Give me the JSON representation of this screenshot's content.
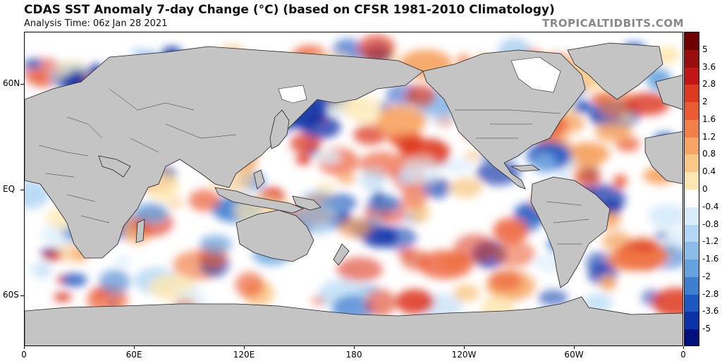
{
  "header": {
    "title": "CDAS SST Anomaly 7-day Change (°C) (based on CFSR 1981-2010 Climatology)",
    "subtitle": "Analysis Time: 06z Jan 28 2021",
    "brand": "TROPICALTIDBITS.COM"
  },
  "map": {
    "latitude_labels": [
      "60N",
      "EQ",
      "60S"
    ],
    "longitude_labels": [
      "0",
      "60E",
      "120E",
      "180",
      "120W",
      "60W",
      "0"
    ],
    "land_color": "#c4c4c4",
    "ocean_neutral_color": "#ffffff"
  },
  "colorbar": {
    "labels": [
      "5",
      "3.6",
      "2.8",
      "2",
      "1.6",
      "1.2",
      "0.8",
      "0.4",
      "0",
      "-0.4",
      "-0.8",
      "-1.2",
      "-1.6",
      "-2",
      "-2.8",
      "-3.6",
      "-5"
    ],
    "colors": [
      "#6e0000",
      "#9a0d0d",
      "#c21616",
      "#dd3a22",
      "#ec5c34",
      "#f2804a",
      "#f6a564",
      "#f9c888",
      "#fde7b0",
      "#ffffff",
      "#d8ecfa",
      "#b3d7f4",
      "#8cbde9",
      "#66a2de",
      "#3e7fd0",
      "#1d58c0",
      "#0a33a8",
      "#00117e"
    ]
  }
}
